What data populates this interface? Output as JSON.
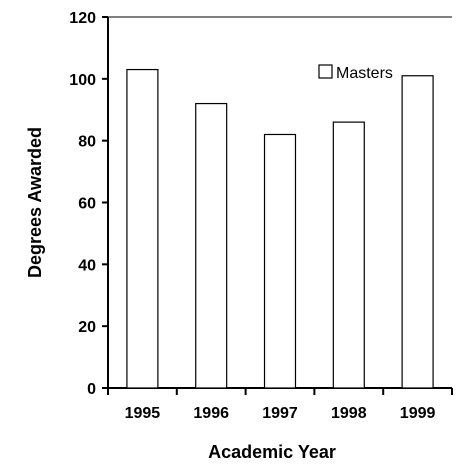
{
  "chart_data": {
    "type": "bar",
    "categories": [
      "1995",
      "1996",
      "1997",
      "1998",
      "1999"
    ],
    "series": [
      {
        "name": "Masters",
        "values": [
          103,
          92,
          82,
          86,
          101
        ]
      }
    ],
    "xlabel": "Academic Year",
    "ylabel": "Degrees Awarded",
    "ylim": [
      0,
      120
    ],
    "yticks": [
      0,
      20,
      40,
      60,
      80,
      100,
      120
    ],
    "grid": false,
    "legend": "top-right",
    "colors": {
      "bar_fill": "#ffffff",
      "bar_stroke": "#000000",
      "axis": "#000000"
    }
  }
}
